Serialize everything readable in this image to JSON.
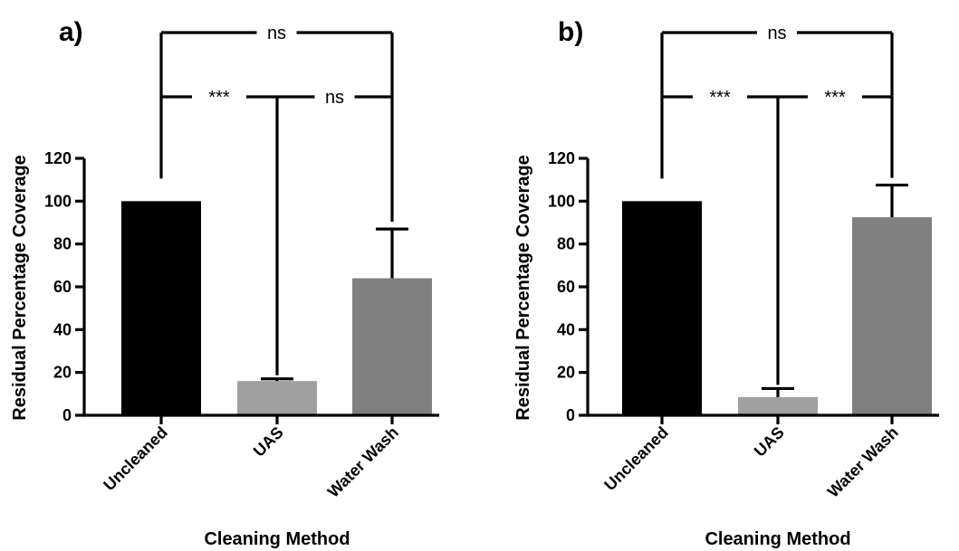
{
  "chart_data": [
    {
      "panel": "a)",
      "type": "bar",
      "xlabel": "Cleaning Method",
      "ylabel": "Residual Percentage Coverage",
      "ylim": [
        0,
        120
      ],
      "yticks": [
        0,
        20,
        40,
        60,
        80,
        100,
        120
      ],
      "categories": [
        "Uncleaned",
        "UAS",
        "Water Wash"
      ],
      "values": [
        100,
        16,
        64
      ],
      "error_upper": [
        0,
        1,
        23
      ],
      "bar_colors": [
        "#000000",
        "#a0a0a0",
        "#808080"
      ],
      "grid": false,
      "significance": [
        {
          "from": 0,
          "to": 2,
          "label": "ns",
          "level": "top"
        },
        {
          "from": 0,
          "to": 1,
          "label": "***",
          "level": "lower"
        },
        {
          "from": 1,
          "to": 2,
          "label": "ns",
          "level": "lower"
        }
      ]
    },
    {
      "panel": "b)",
      "type": "bar",
      "xlabel": "Cleaning Method",
      "ylabel": "Residual Percentage Coverage",
      "ylim": [
        0,
        120
      ],
      "yticks": [
        0,
        20,
        40,
        60,
        80,
        100,
        120
      ],
      "categories": [
        "Uncleaned",
        "UAS",
        "Water Wash"
      ],
      "values": [
        100,
        8.5,
        92.5
      ],
      "error_upper": [
        0,
        4,
        15
      ],
      "bar_colors": [
        "#000000",
        "#a0a0a0",
        "#808080"
      ],
      "grid": false,
      "significance": [
        {
          "from": 0,
          "to": 2,
          "label": "ns",
          "level": "top"
        },
        {
          "from": 0,
          "to": 1,
          "label": "***",
          "level": "lower"
        },
        {
          "from": 1,
          "to": 2,
          "label": "***",
          "level": "lower"
        }
      ]
    }
  ]
}
